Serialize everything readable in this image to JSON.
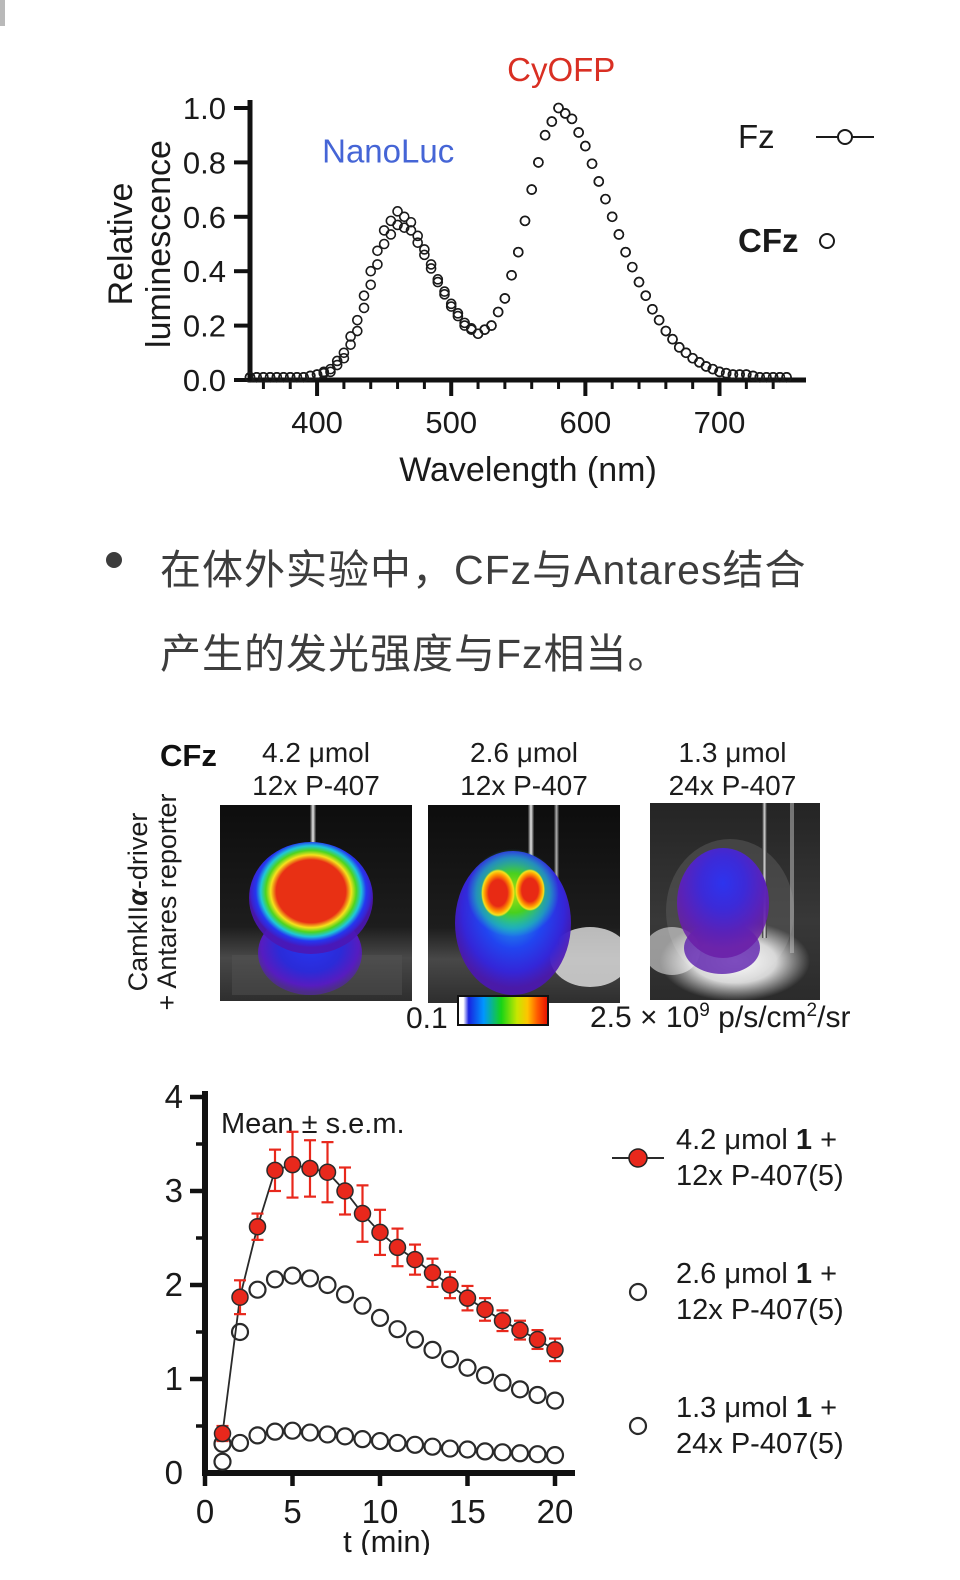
{
  "spectrum_legend": {
    "fz": {
      "label": "Fz"
    },
    "cfz": {
      "label": "CFz"
    }
  },
  "bullet": {
    "line1": "在体外实验中，CFz与Antares结合",
    "line2": "产生的发光强度与Fz相当。"
  },
  "invivo": {
    "row_label": "CFz",
    "columns": [
      {
        "dose": "4.2 μmol",
        "formulation": "12x P-407"
      },
      {
        "dose": "2.6 μmol",
        "formulation": "12x P-407"
      },
      {
        "dose": "1.3 μmol",
        "formulation": "24x P-407"
      }
    ],
    "side_label": {
      "pre": "CamkII",
      "alpha": "α",
      "post": "-driver",
      "line2": "+ Antares reporter"
    },
    "colorbar": {
      "min": "0.1",
      "max_base": "2.5 × 10",
      "max_exp": "9",
      "units_base": " p/s/cm",
      "units_exp": "2",
      "units_tail": "/sr"
    }
  },
  "kinetics_legend": [
    {
      "dose": "4.2 μmol ",
      "compound": "1",
      "plus": " +",
      "line2": "12x P-407(5)",
      "marker": "filled-red-circle-line",
      "color": "#e8281c"
    },
    {
      "dose": "2.6 μmol ",
      "compound": "1",
      "plus": " +",
      "line2": "12x P-407(5)",
      "marker": "open-circle",
      "color": "#ffffff"
    },
    {
      "dose": "1.3 μmol ",
      "compound": "1",
      "plus": " +",
      "line2": "24x P-407(5)",
      "marker": "open-circle",
      "color": "#ffffff"
    }
  ],
  "chart_data": [
    {
      "type": "line",
      "title": "",
      "xlabel": "Wavelength (nm)",
      "ylabel": "Relative luminescence",
      "ylabel_lines": [
        "Relative",
        "luminescence"
      ],
      "xlim": [
        350,
        760
      ],
      "ylim": [
        0,
        1.0
      ],
      "xticks": [
        400,
        500,
        600,
        700
      ],
      "yticks": [
        0.0,
        0.2,
        0.4,
        0.6,
        0.8,
        1.0
      ],
      "grid": false,
      "legend_position": "right-outside",
      "annotations": [
        {
          "text": "NanoLuc",
          "x": 453,
          "y": 0.8,
          "color": "#4565d6"
        },
        {
          "text": "CyOFP",
          "x": 582,
          "y": 1.1,
          "color": "#d92f23"
        }
      ],
      "x": [
        350,
        360,
        370,
        380,
        390,
        400,
        410,
        420,
        430,
        440,
        450,
        460,
        470,
        480,
        490,
        500,
        510,
        520,
        530,
        540,
        550,
        560,
        570,
        580,
        590,
        600,
        610,
        620,
        630,
        640,
        650,
        660,
        670,
        680,
        690,
        700,
        710,
        720,
        730,
        740,
        750
      ],
      "series": [
        {
          "name": "Fz",
          "marker": "open-circle-on-line",
          "values": [
            0.01,
            0.01,
            0.01,
            0.01,
            0.01,
            0.02,
            0.04,
            0.1,
            0.22,
            0.4,
            0.55,
            0.62,
            0.58,
            0.48,
            0.37,
            0.28,
            0.21,
            0.17,
            0.2,
            0.3,
            0.47,
            0.7,
            0.9,
            1.0,
            0.96,
            0.86,
            0.73,
            0.6,
            0.47,
            0.36,
            0.26,
            0.18,
            0.12,
            0.08,
            0.05,
            0.03,
            0.02,
            0.02,
            0.01,
            0.01,
            0.01
          ]
        },
        {
          "name": "CFz",
          "marker": "open-circle",
          "values": [
            0.01,
            0.01,
            0.01,
            0.01,
            0.01,
            0.02,
            0.03,
            0.08,
            0.18,
            0.35,
            0.5,
            0.57,
            0.55,
            0.46,
            0.36,
            0.27,
            0.2,
            0.17,
            0.2,
            0.3,
            0.47,
            0.7,
            0.9,
            1.0,
            0.96,
            0.86,
            0.73,
            0.6,
            0.47,
            0.36,
            0.26,
            0.18,
            0.12,
            0.08,
            0.05,
            0.03,
            0.02,
            0.02,
            0.01,
            0.01,
            0.01
          ]
        }
      ]
    },
    {
      "type": "scatter",
      "annotation": "Mean ± s.e.m.",
      "xlabel": "t (min)",
      "ylabel": "",
      "xlim": [
        0,
        21
      ],
      "ylim": [
        0,
        4
      ],
      "xticks": [
        0,
        5,
        10,
        15,
        20
      ],
      "yticks": [
        0,
        1,
        2,
        3,
        4
      ],
      "grid": false,
      "x": [
        1,
        2,
        3,
        4,
        5,
        6,
        7,
        8,
        9,
        10,
        11,
        12,
        13,
        14,
        15,
        16,
        17,
        18,
        19,
        20
      ],
      "series": [
        {
          "name": "4.2 μmol 1 + 12x P-407(5)",
          "marker": "filled-circle",
          "color": "#e8281c",
          "line": true,
          "values": [
            0.42,
            1.87,
            2.62,
            3.22,
            3.28,
            3.24,
            3.2,
            3.0,
            2.76,
            2.56,
            2.4,
            2.27,
            2.13,
            2.0,
            1.86,
            1.74,
            1.62,
            1.52,
            1.42,
            1.31
          ],
          "errors": [
            0.08,
            0.18,
            0.14,
            0.22,
            0.35,
            0.3,
            0.32,
            0.25,
            0.3,
            0.24,
            0.2,
            0.16,
            0.15,
            0.14,
            0.13,
            0.12,
            0.11,
            0.1,
            0.1,
            0.12
          ]
        },
        {
          "name": "2.6 μmol 1 + 12x P-407(5)",
          "marker": "open-circle",
          "color": "#ffffff",
          "line": false,
          "values": [
            0.31,
            1.5,
            1.95,
            2.06,
            2.1,
            2.07,
            2.0,
            1.9,
            1.78,
            1.65,
            1.53,
            1.42,
            1.31,
            1.21,
            1.12,
            1.04,
            0.96,
            0.89,
            0.83,
            0.77
          ]
        },
        {
          "name": "1.3 μmol 1 + 24x P-407(5)",
          "marker": "open-circle",
          "color": "#ffffff",
          "line": false,
          "values": [
            0.12,
            0.32,
            0.4,
            0.44,
            0.45,
            0.43,
            0.41,
            0.39,
            0.36,
            0.34,
            0.32,
            0.3,
            0.28,
            0.26,
            0.25,
            0.23,
            0.22,
            0.21,
            0.2,
            0.19
          ]
        }
      ]
    }
  ]
}
